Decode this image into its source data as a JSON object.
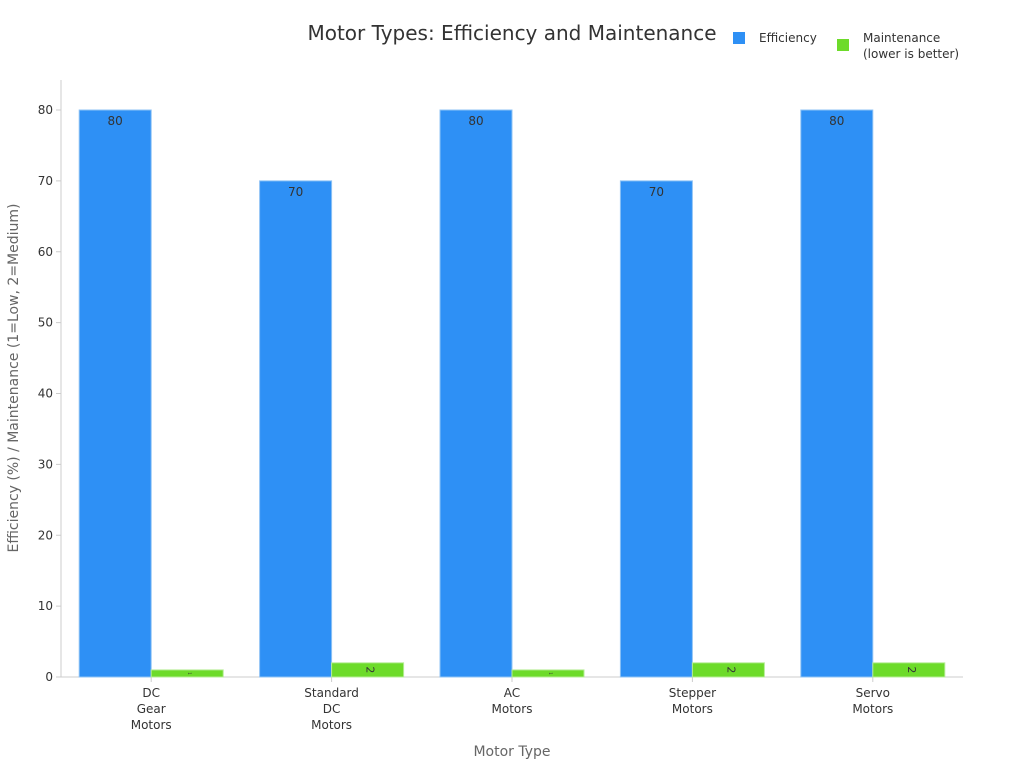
{
  "chart_data": {
    "type": "bar",
    "title": "Motor Types: Efficiency and Maintenance",
    "xlabel": "Motor Type",
    "ylabel": "Efficiency (%) / Maintenance (1=Low, 2=Medium)",
    "ylim": [
      0,
      80
    ],
    "yticks": [
      0,
      10,
      20,
      30,
      40,
      50,
      60,
      70,
      80
    ],
    "categories": [
      [
        "DC",
        "Gear",
        "Motors"
      ],
      [
        "Standard",
        "DC",
        "Motors"
      ],
      [
        "AC",
        "Motors"
      ],
      [
        "Stepper",
        "Motors"
      ],
      [
        "Servo",
        "Motors"
      ]
    ],
    "series": [
      {
        "name": "Efficiency",
        "values": [
          80,
          70,
          80,
          70,
          80
        ],
        "color": "#2e90f5"
      },
      {
        "name": [
          "Maintenance",
          "(lower is better)"
        ],
        "values": [
          1,
          2,
          1,
          2,
          2
        ],
        "color": "#6ddb2a"
      }
    ],
    "legend_position": "top-right",
    "grid": false
  }
}
